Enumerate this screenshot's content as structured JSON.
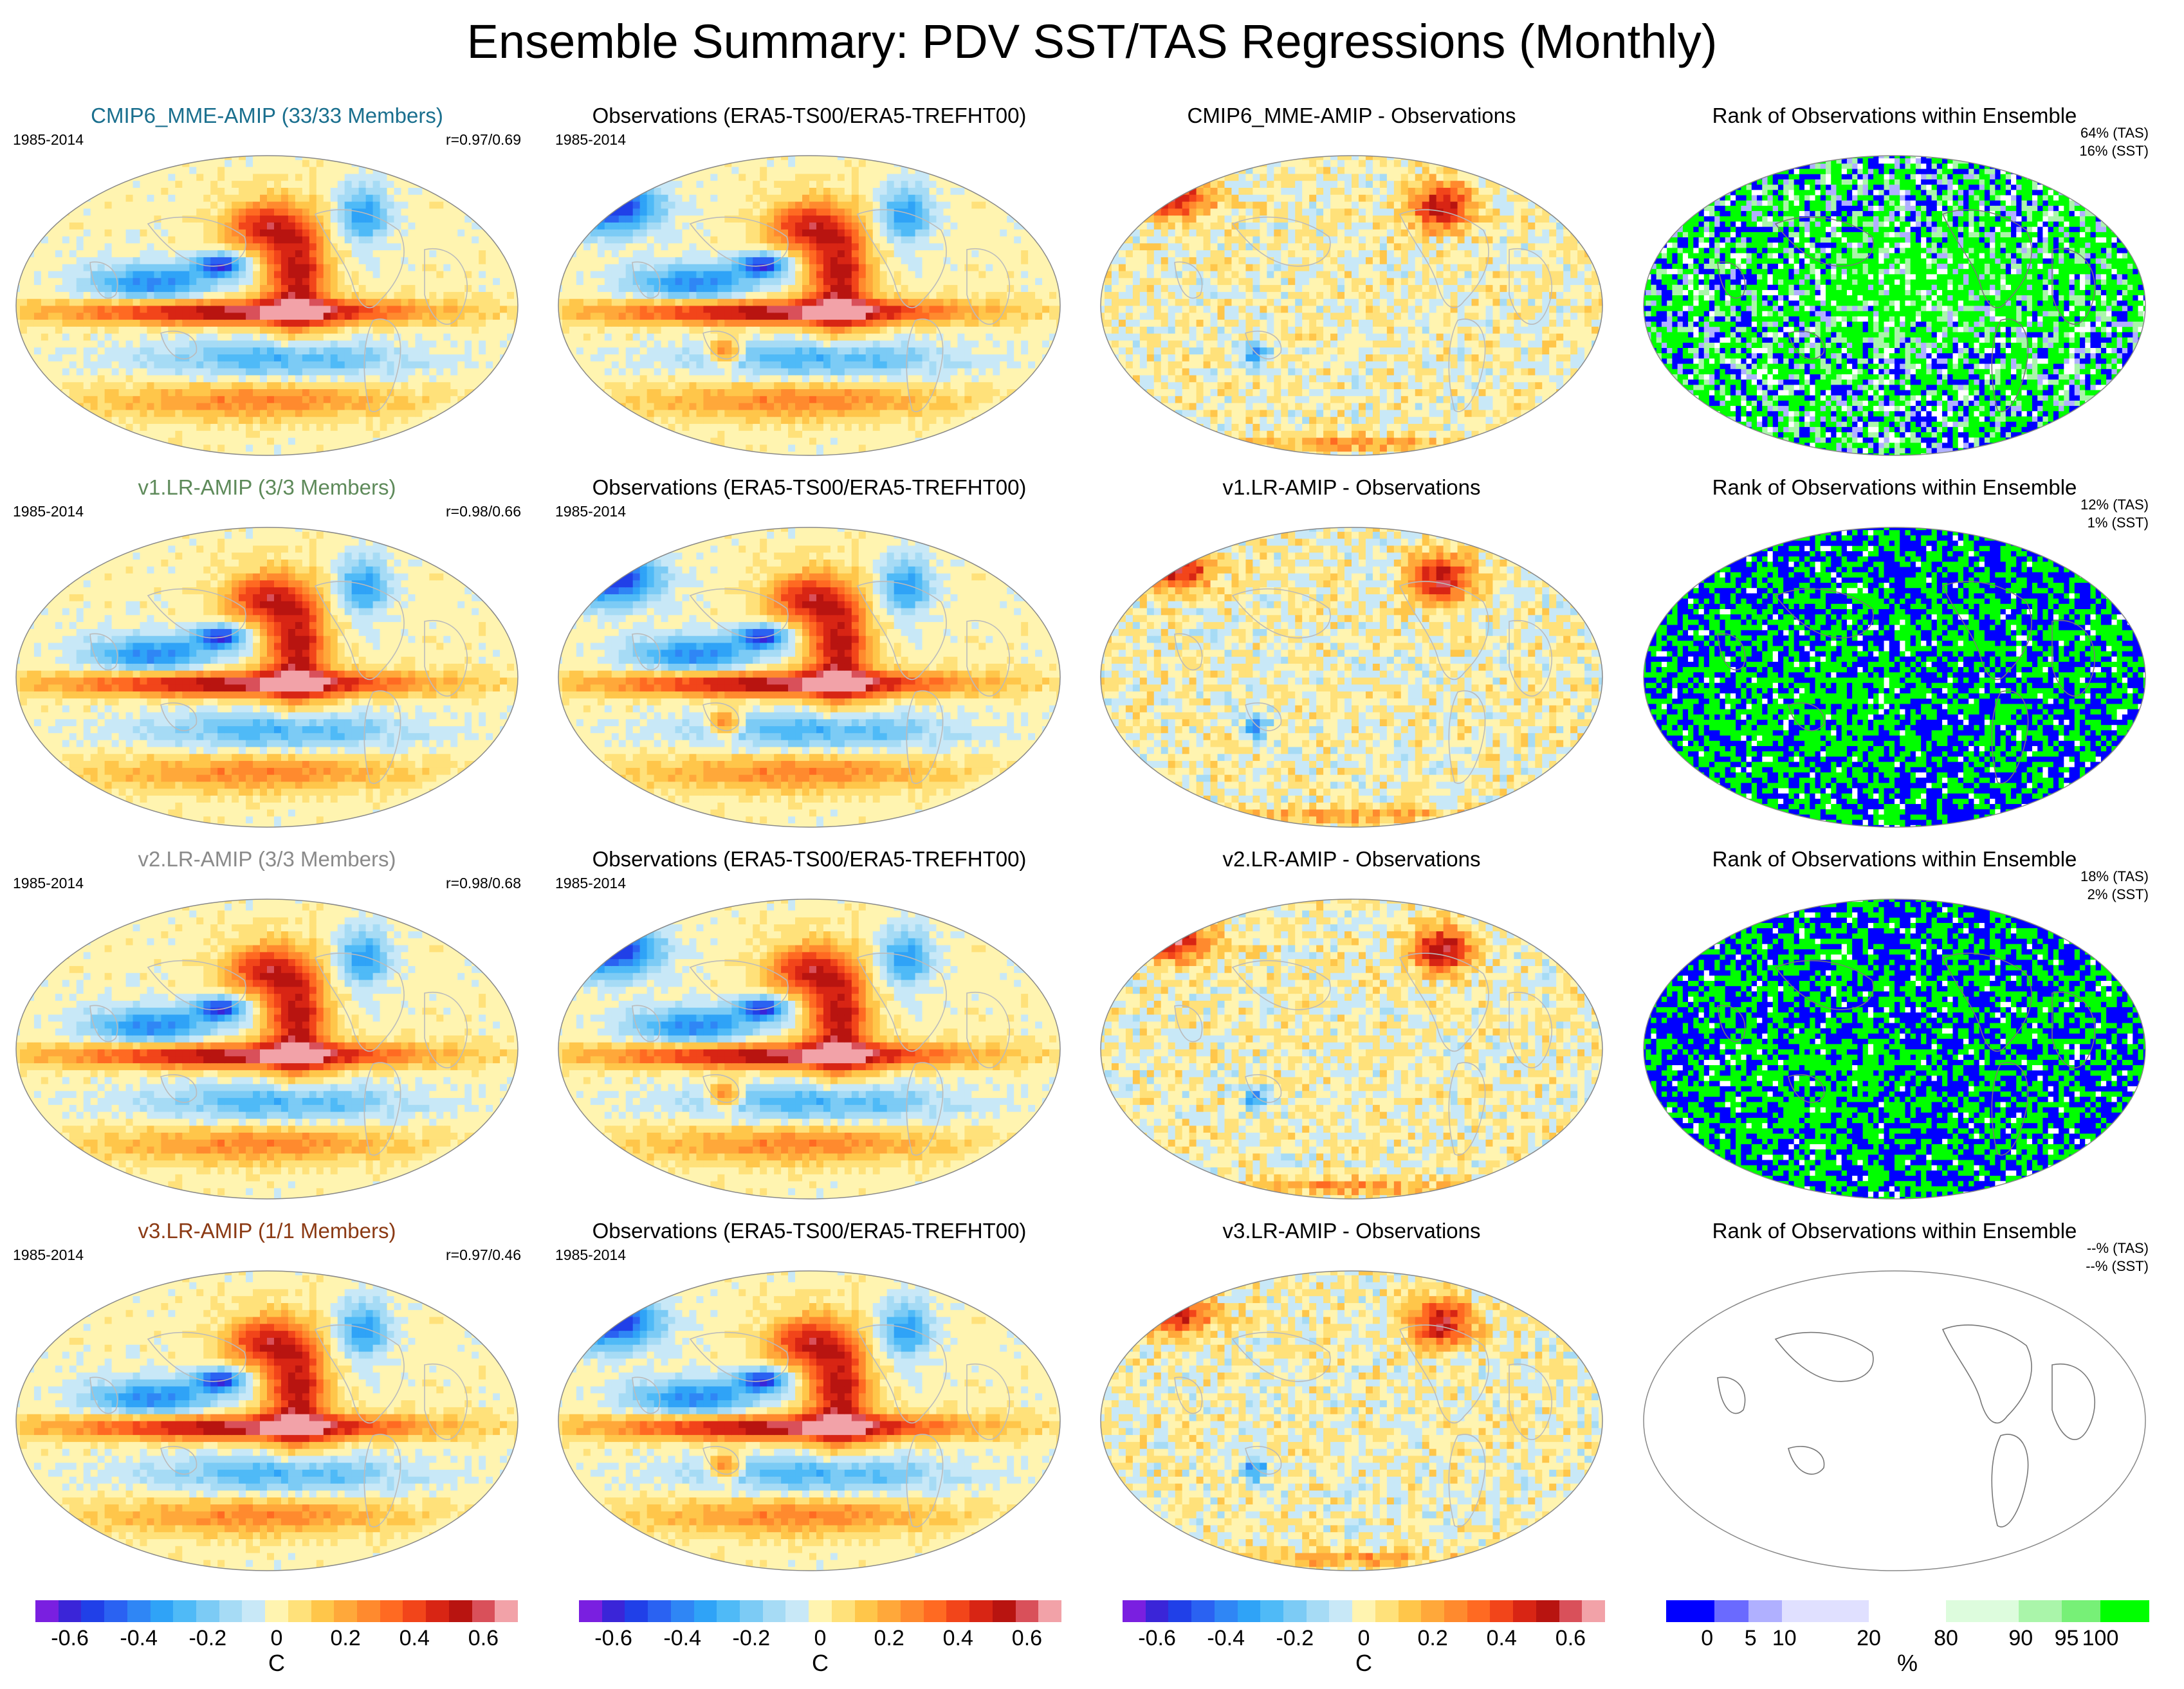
{
  "title": "Ensemble Summary: PDV SST/TAS Regressions (Monthly)",
  "period": "1985-2014",
  "colors": {
    "ens_title": [
      "#1a6f8e",
      "#5e8a5a",
      "#8a8a8a",
      "#8b3a14"
    ]
  },
  "rows": [
    {
      "ensemble_title": "CMIP6_MME-AMIP (33/33 Members)",
      "correlation": "r=0.97/0.69",
      "obs_title": "Observations (ERA5-TS00/ERA5-TREFHT00)",
      "diff_title": "CMIP6_MME-AMIP - Observations",
      "rank_title": "Rank of Observations within Ensemble",
      "rank_tas": "64% (TAS)",
      "rank_sst": "16% (SST)"
    },
    {
      "ensemble_title": "v1.LR-AMIP (3/3 Members)",
      "correlation": "r=0.98/0.66",
      "obs_title": "Observations (ERA5-TS00/ERA5-TREFHT00)",
      "diff_title": "v1.LR-AMIP - Observations",
      "rank_title": "Rank of Observations within Ensemble",
      "rank_tas": "12% (TAS)",
      "rank_sst": "1% (SST)"
    },
    {
      "ensemble_title": "v2.LR-AMIP (3/3 Members)",
      "correlation": "r=0.98/0.68",
      "obs_title": "Observations (ERA5-TS00/ERA5-TREFHT00)",
      "diff_title": "v2.LR-AMIP - Observations",
      "rank_title": "Rank of Observations within Ensemble",
      "rank_tas": "18% (TAS)",
      "rank_sst": "2% (SST)"
    },
    {
      "ensemble_title": "v3.LR-AMIP (1/1 Members)",
      "correlation": "r=0.97/0.46",
      "obs_title": "Observations (ERA5-TS00/ERA5-TREFHT00)",
      "diff_title": "v3.LR-AMIP - Observations",
      "rank_title": "Rank of Observations within Ensemble",
      "rank_tas": "--% (TAS)",
      "rank_sst": "--% (SST)"
    }
  ],
  "chart_data": {
    "type": "heatmap",
    "title": "Ensemble Summary: PDV SST/TAS Regressions (Monthly)",
    "description_units": "C",
    "temperature_colorbar": {
      "unit": "C",
      "ticks": [
        "-0.6",
        "-0.4",
        "-0.2",
        "0",
        "0.2",
        "0.4",
        "0.6"
      ],
      "range": [
        -0.7,
        0.7
      ],
      "colors": [
        "#7a1fe0",
        "#3a25d8",
        "#2040e8",
        "#2a62f2",
        "#2f86f5",
        "#2fa3f7",
        "#4fbaf7",
        "#7ccbf5",
        "#a6dbf5",
        "#c8e8f7",
        "#fff4b0",
        "#ffe17a",
        "#ffc64a",
        "#ffa83a",
        "#ff8a2e",
        "#ff6a22",
        "#f2451a",
        "#d82514",
        "#b81410",
        "#d9505a",
        "#f2a2a8"
      ]
    },
    "rank_colorbar": {
      "unit": "%",
      "ticks": [
        "0",
        "5",
        "10",
        "20",
        "80",
        "90",
        "95",
        "100"
      ],
      "colors": [
        "#0000ff",
        "#6a6aff",
        "#b0b0ff",
        "#e0e0ff",
        "#ffffff",
        "#ddfcdd",
        "#aaf5aa",
        "#77f077",
        "#00ff00"
      ]
    },
    "correlations": [
      [
        0.97,
        0.69
      ],
      [
        0.98,
        0.66
      ],
      [
        0.98,
        0.68
      ],
      [
        0.97,
        0.46
      ]
    ],
    "rank_percentages_tas": [
      64,
      12,
      18,
      null
    ],
    "rank_percentages_sst": [
      16,
      1,
      2,
      null
    ]
  }
}
